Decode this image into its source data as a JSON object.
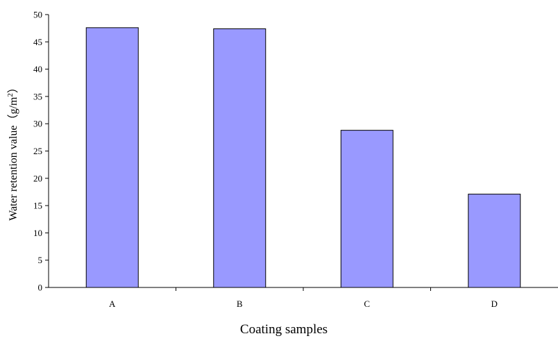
{
  "chart_data": {
    "type": "bar",
    "categories": [
      "A",
      "B",
      "C",
      "D"
    ],
    "values": [
      47.6,
      47.4,
      28.8,
      17.1
    ],
    "xlabel": "Coating samples",
    "ylabel_main": "Water retention value（g/m",
    "ylabel_sup": "2",
    "ylabel_close": "）",
    "ylim": [
      0,
      50
    ],
    "ytick_step": 5,
    "yticks": [
      "0",
      "5",
      "10",
      "15",
      "20",
      "25",
      "30",
      "35",
      "40",
      "45",
      "50"
    ],
    "grid": false,
    "legend": "none",
    "bar_color": "#9999ff",
    "bar_edge_color": "#000000"
  }
}
